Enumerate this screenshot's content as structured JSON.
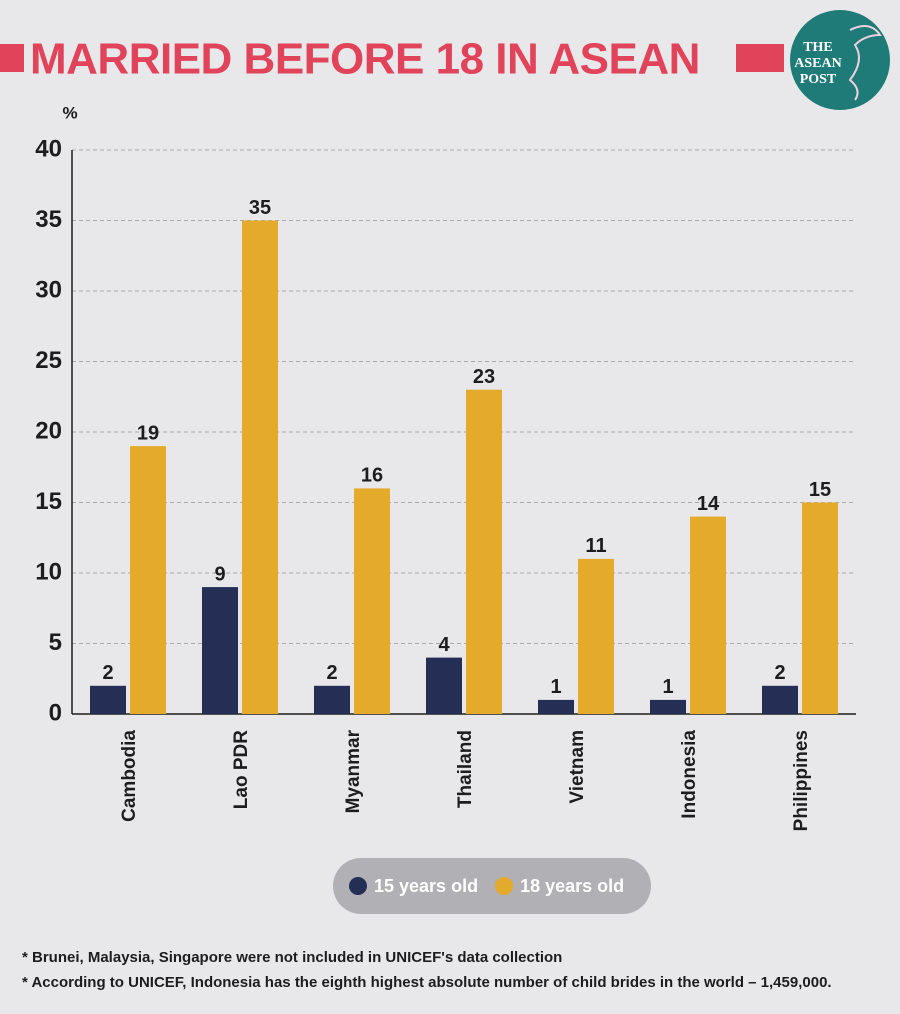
{
  "chart_data": {
    "type": "bar",
    "title": "MARRIED BEFORE 18 IN ASEAN",
    "y_label": "%",
    "categories": [
      "Cambodia",
      "Lao PDR",
      "Myanmar",
      "Thailand",
      "Vietnam",
      "Indonesia",
      "Philippines"
    ],
    "series": [
      {
        "name": "15 years old",
        "color": "#252e55",
        "values": [
          2,
          9,
          2,
          4,
          1,
          1,
          2
        ]
      },
      {
        "name": "18 years old",
        "color": "#e4aa2b",
        "values": [
          19,
          35,
          16,
          23,
          11,
          14,
          15
        ]
      }
    ],
    "ylim": [
      0,
      40
    ],
    "yticks": [
      0,
      5,
      10,
      15,
      20,
      25,
      30,
      35,
      40
    ],
    "grid": true
  },
  "logo": [
    "THE",
    "ASEAN",
    "POST"
  ],
  "notes": [
    "* Brunei, Malaysia, Singapore were not included in UNICEF's data collection",
    "* According to UNICEF, Indonesia has the eighth highest absolute number of child brides in the world – 1,459,000."
  ]
}
